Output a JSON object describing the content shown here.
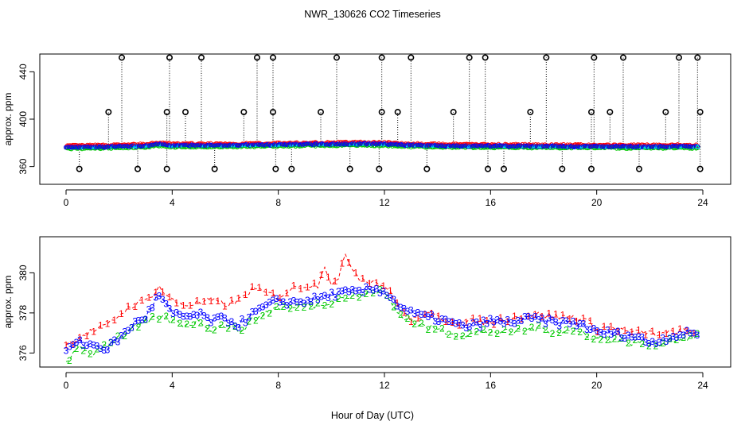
{
  "title": "NWR_130626  CO2 Timeseries",
  "xlabel": "Hour of Day (UTC)",
  "colors": {
    "background": "#ffffff",
    "axis": "#000000",
    "series1": "#ff0000",
    "series2": "#00c800",
    "series3": "#0000ff",
    "cyan": "#00e5ee",
    "orange": "#ff8c00",
    "outlier": "#000000"
  },
  "chart_data": [
    {
      "type": "scatter",
      "panel": "top",
      "ylabel": "approx. ppm",
      "xlim": [
        0,
        24
      ],
      "ylim": [
        345,
        455
      ],
      "xticks": [
        0,
        4,
        8,
        12,
        16,
        20,
        24
      ],
      "yticks": [
        360,
        400,
        440
      ],
      "baseline": {
        "x": [
          0,
          1,
          2,
          3,
          3.5,
          4,
          5,
          6,
          7,
          8,
          9,
          10,
          11,
          12,
          13,
          14,
          15,
          16,
          17,
          18,
          19,
          20,
          21,
          22,
          23,
          23.8
        ],
        "y": [
          376.4,
          376.6,
          377.0,
          377.6,
          378.8,
          377.8,
          378.0,
          377.8,
          378.2,
          378.4,
          378.8,
          379.0,
          379.2,
          379.0,
          378.0,
          377.6,
          377.4,
          377.4,
          377.2,
          377.2,
          377.0,
          377.0,
          376.8,
          376.8,
          377.0,
          376.8
        ]
      },
      "outliers_high": [
        2.1,
        3.9,
        5.1,
        7.2,
        7.8,
        10.2,
        11.9,
        13.0,
        15.2,
        15.8,
        18.1,
        19.9,
        21.0,
        23.1,
        23.8
      ],
      "outliers_mid": [
        1.6,
        3.8,
        4.5,
        6.7,
        7.8,
        9.6,
        11.9,
        12.5,
        14.6,
        17.5,
        19.8,
        20.5,
        22.6,
        23.9
      ],
      "outliers_low": [
        0.5,
        2.7,
        3.8,
        5.6,
        7.9,
        8.5,
        10.7,
        11.8,
        13.6,
        15.9,
        16.5,
        18.7,
        19.8,
        21.6,
        23.9
      ],
      "high_value": 452,
      "mid_value": 406,
      "low_value": 358
    },
    {
      "type": "line",
      "panel": "bottom",
      "ylabel": "approx. ppm",
      "xlim": [
        0,
        24
      ],
      "ylim": [
        375.3,
        381.8
      ],
      "xticks": [
        0,
        4,
        8,
        12,
        16,
        20,
        24
      ],
      "yticks": [
        376,
        378,
        380
      ],
      "series": [
        {
          "name": "1",
          "x": [
            0,
            0.5,
            1,
            1.5,
            2,
            2.5,
            3,
            3.5,
            4,
            4.5,
            5,
            5.5,
            6,
            6.5,
            7,
            7.5,
            8,
            8.5,
            9,
            9.5,
            9.7,
            10,
            10.3,
            10.5,
            11,
            11.5,
            12,
            12.5,
            13,
            13.5,
            14,
            14.5,
            15,
            15.5,
            16,
            16.5,
            17,
            17.5,
            18,
            18.5,
            19,
            19.5,
            20,
            20.5,
            21,
            21.5,
            22,
            22.5,
            23,
            23.8
          ],
          "y": [
            376.4,
            376.8,
            377.1,
            377.3,
            377.9,
            378.4,
            378.6,
            379.3,
            378.6,
            378.4,
            378.5,
            378.6,
            378.4,
            378.6,
            379.2,
            379.0,
            378.8,
            379.2,
            379.4,
            379.4,
            380.5,
            379.5,
            379.6,
            381.0,
            379.8,
            379.6,
            379.4,
            378.4,
            377.6,
            377.9,
            377.8,
            377.6,
            377.5,
            377.6,
            377.5,
            377.7,
            377.8,
            377.9,
            377.9,
            377.8,
            377.8,
            377.7,
            377.2,
            377.3,
            377.1,
            377.0,
            377.0,
            376.9,
            377.1,
            377.0
          ]
        },
        {
          "name": "2",
          "x": [
            0,
            0.5,
            1,
            1.5,
            2,
            2.5,
            3,
            3.5,
            4,
            4.5,
            5,
            5.5,
            6,
            6.5,
            7,
            7.5,
            8,
            8.5,
            9,
            9.5,
            10,
            10.5,
            11,
            11.5,
            12,
            12.5,
            13,
            13.5,
            14,
            14.5,
            15,
            15.5,
            16,
            16.5,
            17,
            17.5,
            18,
            18.5,
            19,
            19.5,
            20,
            20.5,
            21,
            21.5,
            22,
            22.5,
            23,
            23.8
          ],
          "y": [
            375.6,
            376.2,
            376.0,
            376.4,
            376.8,
            377.2,
            377.5,
            377.8,
            377.6,
            377.4,
            377.6,
            377.2,
            377.4,
            377.1,
            377.6,
            378.0,
            378.3,
            378.2,
            378.4,
            378.4,
            378.6,
            378.8,
            378.8,
            379.1,
            379.0,
            378.0,
            377.6,
            377.3,
            377.2,
            377.0,
            376.9,
            377.0,
            377.1,
            377.0,
            377.1,
            377.2,
            377.2,
            377.1,
            377.1,
            377.0,
            376.7,
            376.7,
            376.6,
            376.5,
            376.4,
            376.5,
            376.7,
            376.8
          ]
        },
        {
          "name": "3",
          "x": [
            0,
            0.5,
            1,
            1.5,
            2,
            2.5,
            3,
            3.5,
            4,
            4.5,
            5,
            5.5,
            6,
            6.5,
            7,
            7.5,
            8,
            8.5,
            9,
            9.5,
            10,
            10.5,
            11,
            11.5,
            12,
            12.5,
            13,
            13.5,
            14,
            14.5,
            15,
            15.5,
            16,
            16.5,
            17,
            17.5,
            18,
            18.5,
            19,
            19.5,
            20,
            20.5,
            21,
            21.5,
            22,
            22.5,
            23,
            23.8
          ],
          "y": [
            376.2,
            376.5,
            376.4,
            376.2,
            376.7,
            377.4,
            377.8,
            378.9,
            377.9,
            377.8,
            377.9,
            377.6,
            377.7,
            377.4,
            377.9,
            378.3,
            378.6,
            378.5,
            378.6,
            378.7,
            378.9,
            379.0,
            379.0,
            379.2,
            379.1,
            378.4,
            378.0,
            377.8,
            377.7,
            377.5,
            377.3,
            377.4,
            377.6,
            377.5,
            377.6,
            377.7,
            377.6,
            377.5,
            377.5,
            377.4,
            377.0,
            377.0,
            376.9,
            376.8,
            376.5,
            376.7,
            376.9,
            377.0
          ]
        }
      ]
    }
  ]
}
